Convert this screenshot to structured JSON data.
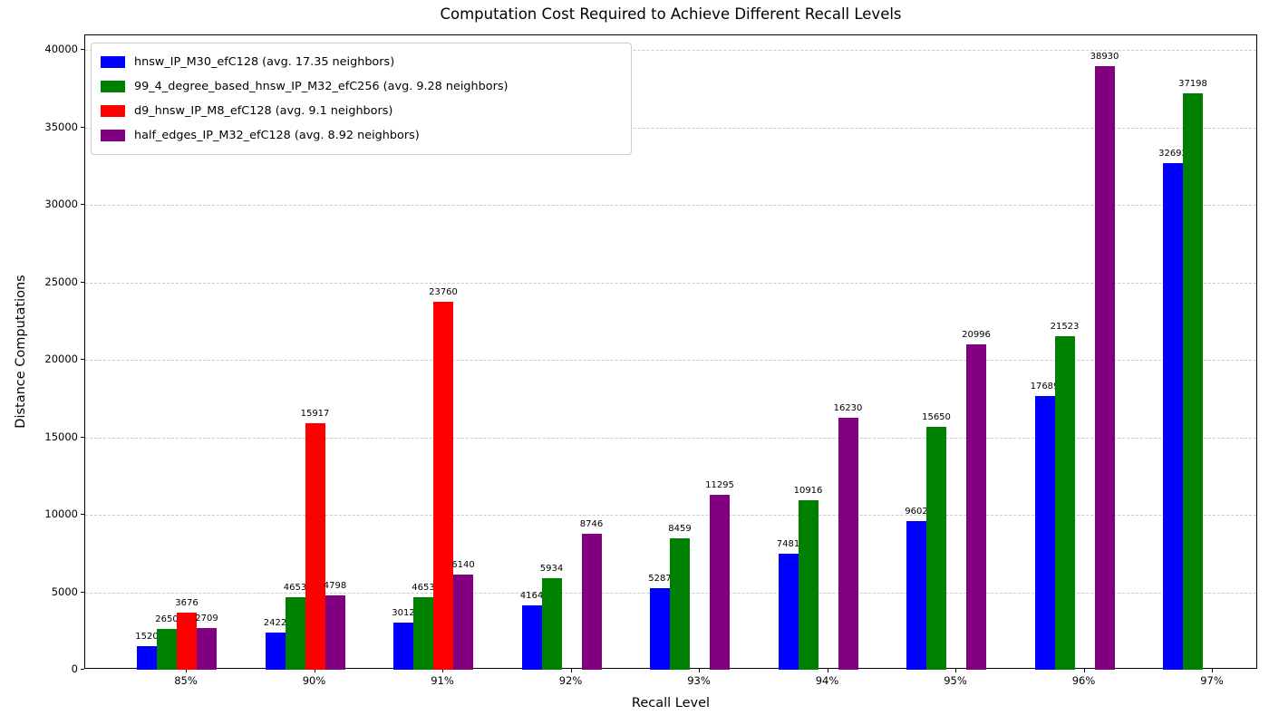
{
  "title": "Computation Cost Required to Achieve Different Recall Levels",
  "chart_data": {
    "type": "bar",
    "title": "Computation Cost Required to Achieve Different Recall Levels",
    "xlabel": "Recall Level",
    "ylabel": "Distance Computations",
    "categories": [
      "85%",
      "90%",
      "91%",
      "92%",
      "93%",
      "94%",
      "95%",
      "96%",
      "97%"
    ],
    "series": [
      {
        "name": "hnsw_IP_M30_efC128 (avg. 17.35 neighbors)",
        "color": "#0000ff",
        "values": [
          1520,
          2422,
          3012,
          4164,
          5287,
          7481,
          9602,
          17689,
          32692
        ]
      },
      {
        "name": "99_4_degree_based_hnsw_IP_M32_efC256 (avg. 9.28 neighbors)",
        "color": "#008000",
        "values": [
          2650,
          4653,
          4653,
          5934,
          8459,
          10916,
          15650,
          21523,
          37198
        ]
      },
      {
        "name": "d9_hnsw_IP_M8_efC128 (avg. 9.1 neighbors)",
        "color": "#ff0000",
        "values": [
          3676,
          15917,
          23760,
          null,
          null,
          null,
          null,
          null,
          null
        ]
      },
      {
        "name": "half_edges_IP_M32_efC128 (avg. 8.92 neighbors)",
        "color": "#800080",
        "values": [
          2709,
          4798,
          6140,
          8746,
          11295,
          16230,
          20996,
          38930,
          null
        ]
      }
    ],
    "ylim": [
      0,
      40000
    ],
    "yticks": [
      0,
      5000,
      10000,
      15000,
      20000,
      25000,
      30000,
      35000,
      40000
    ],
    "grid": "horizontal-dashed",
    "legend_position": "upper-left",
    "bar_value_labels_shown": true
  }
}
